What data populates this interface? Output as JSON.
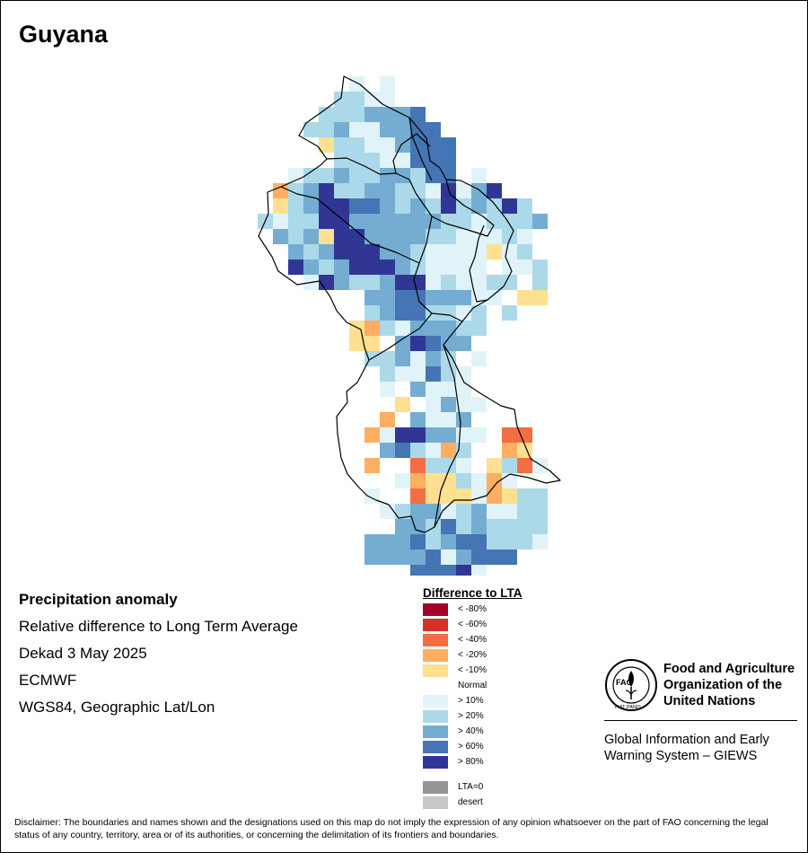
{
  "map": {
    "title": "Guyana",
    "country_name": "Guyana",
    "subject": "Precipitation anomaly"
  },
  "info": {
    "title": "Precipitation anomaly",
    "line1": "Relative difference to Long Term Average",
    "line2": "Dekad 3 May 2025",
    "line3": "ECMWF",
    "line4": "WGS84, Geographic Lat/Lon"
  },
  "legend": {
    "title": "Difference to LTA",
    "items": [
      {
        "label": "< -80%",
        "color": "#a50026"
      },
      {
        "label": "< -60%",
        "color": "#d73027"
      },
      {
        "label": "< -40%",
        "color": "#f46d43"
      },
      {
        "label": "< -20%",
        "color": "#fdae61"
      },
      {
        "label": "< -10%",
        "color": "#fee090"
      },
      {
        "label": "Normal",
        "color": "#ffffff"
      },
      {
        "label": "> 10%",
        "color": "#e0f3f8"
      },
      {
        "label": "> 20%",
        "color": "#abd9e9"
      },
      {
        "label": "> 40%",
        "color": "#74add1"
      },
      {
        "label": "> 60%",
        "color": "#4575b4"
      },
      {
        "label": "> 80%",
        "color": "#313695"
      },
      {
        "label": "LTA=0",
        "color": "#969696"
      },
      {
        "label": "desert",
        "color": "#c8c8c8"
      }
    ]
  },
  "org": {
    "logo_icon": "fao-logo-icon",
    "logo_text": "FAO",
    "logo_motto": "FIAT PANIS",
    "name_line1": "Food and Agriculture",
    "name_line2": "Organization of the",
    "name_line3": "United Nations",
    "giews_line1": "Global Information and Early",
    "giews_line2": "Warning System – GIEWS"
  },
  "disclaimer": "Disclaimer: The boundaries and names shown and the designations used on this map do not imply the expression of any opinion whatsoever on the part of FAO concerning the legal status of any country, territory, area or of its authorities, or concerning the delimitation of its frontiers and boundaries."
}
